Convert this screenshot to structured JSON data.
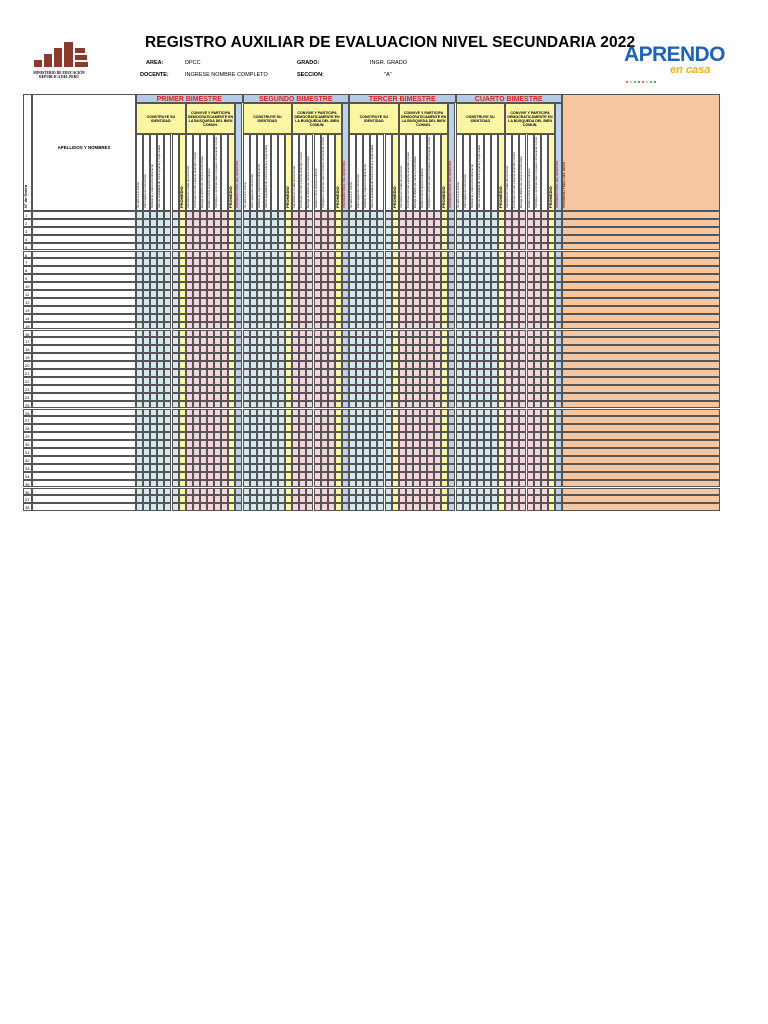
{
  "title": "REGISTRO AUXILIAR DE EVALUACION NIVEL SECUNDARIA 2022",
  "logo_minedu": {
    "line1": "MINISTERIO DE EDUCACIÓN",
    "line2": "REPUBLICA DEL PERÚ",
    "brick_color": "#8b3a2b"
  },
  "logo_aprendo": {
    "word1": "APRENDO",
    "word2": "en casa",
    "colors": [
      "#1f64b4",
      "#f2b012"
    ],
    "dot_colors": [
      "#e53935",
      "#f2b012",
      "#43a047",
      "#1f64b4",
      "#e53935",
      "#f2b012",
      "#43a047",
      "#1f64b4"
    ]
  },
  "info": {
    "area_label": "AREA:",
    "area_value": "DPCC",
    "grado_label": "GRADO:",
    "grado_value": "INGR. GRADO",
    "docente_label": "DOCENTE:",
    "docente_value": "INGRESE NOMBRE COMPLETO",
    "seccion_label": "SECCION:",
    "seccion_value": "\"A\""
  },
  "table": {
    "order_header": "N° de Orden",
    "names_header": "APELLIDOS Y NOMBRES",
    "bimesters": [
      {
        "title": "PRIMER BIMESTRE"
      },
      {
        "title": "SEGUNDO BIMESTRE"
      },
      {
        "title": "TERCER BIMESTRE"
      },
      {
        "title": "CUARTO BIMESTRE"
      }
    ],
    "competencies": [
      "CONSTRUYE SU IDENTIDAD",
      "CONVIVE Y PARTICIPA DEMOCRATICAMENTE EN LA BUSQUEDA DEL BIEN COMUN."
    ],
    "capacities_group1": [
      "Se valora a sí mismo",
      "Autorregula sus emociones",
      "Reflexiona y argumenta éticamente",
      "Vive su sexualidad de manera plena y responsable",
      "",
      ""
    ],
    "capacities_group2": [
      "Interactúa con todas las personas",
      "Construye normas y asume acuerdos y leyes",
      "Maneja conflictos de manera constructiva",
      "Delibera sobre asuntos públicos",
      "Participa en acciones que promueven el bienestar común",
      ""
    ],
    "average_label": "PROMEDIO",
    "final_bimester_label": "PROMEDIO FINAL DEL BIMESTRE",
    "final_area_label": "PROMEDIO FINAL DEL AREA",
    "row_numbers": [
      "1",
      "2",
      "3",
      "4",
      "5",
      "6",
      "7",
      "8",
      "9",
      "10",
      "11",
      "12",
      "13",
      "14",
      "15",
      "16",
      "17",
      "18",
      "19",
      "20",
      "21",
      "22",
      "23",
      "24",
      "25",
      "26",
      "27",
      "28",
      "29",
      "30",
      "31",
      "32",
      "33",
      "34",
      "35",
      "36",
      "37",
      "38"
    ],
    "colors": {
      "bimester_header": "#b6cce4",
      "competency_header": "#fbf6a4",
      "group1": "#d4e8f0",
      "group2": "#f6d4dc",
      "average": "#fbf9a8",
      "final_bimester": "#bdd3e8",
      "final_area": "#f6c6a0",
      "grid_line": "#555555",
      "accent_text": "#e02020"
    }
  }
}
